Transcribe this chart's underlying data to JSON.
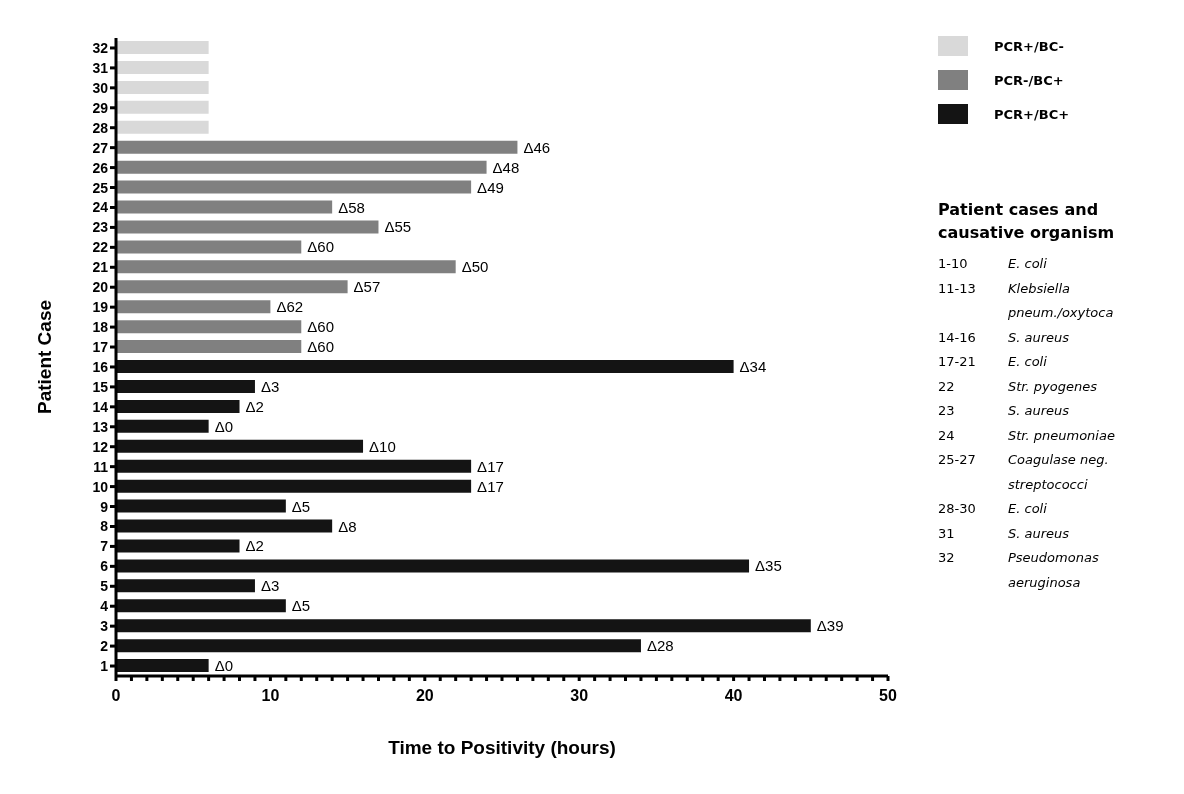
{
  "chart_data": {
    "type": "bar",
    "orientation": "horizontal",
    "stacked": true,
    "xlabel": "Time to Positivity (hours)",
    "ylabel": "Patient Case",
    "categories": [
      "32",
      "31",
      "30",
      "29",
      "28",
      "27",
      "26",
      "25",
      "24",
      "23",
      "22",
      "21",
      "20",
      "19",
      "18",
      "17",
      "16",
      "15",
      "14",
      "13",
      "12",
      "11",
      "10",
      "9",
      "8",
      "7",
      "6",
      "5",
      "4",
      "3",
      "2",
      "1"
    ],
    "series": [
      {
        "name": "PCR+/BC-",
        "color": "#d9d9d9",
        "values": [
          6,
          6,
          6,
          6,
          6,
          null,
          null,
          null,
          null,
          null,
          null,
          null,
          null,
          null,
          null,
          null,
          null,
          null,
          null,
          null,
          null,
          null,
          null,
          null,
          null,
          null,
          null,
          null,
          null,
          null,
          null,
          null
        ]
      },
      {
        "name": "PCR-/BC+",
        "color": "#808080",
        "values": [
          null,
          null,
          null,
          null,
          null,
          26,
          24,
          23,
          14,
          17,
          12,
          22,
          15,
          10,
          12,
          12,
          null,
          null,
          null,
          null,
          null,
          null,
          null,
          null,
          null,
          null,
          null,
          null,
          null,
          null,
          null,
          null
        ],
        "value_labels": [
          null,
          null,
          null,
          null,
          null,
          "Δ46",
          "Δ48",
          "Δ49",
          "Δ58",
          "Δ55",
          "Δ60",
          "Δ50",
          "Δ57",
          "Δ62",
          "Δ60",
          "Δ60",
          null,
          null,
          null,
          null,
          null,
          null,
          null,
          null,
          null,
          null,
          null,
          null,
          null,
          null,
          null,
          null
        ]
      },
      {
        "name": "PCR+/BC+",
        "color": "#141414",
        "values": [
          null,
          null,
          null,
          null,
          null,
          null,
          null,
          null,
          null,
          null,
          null,
          null,
          null,
          null,
          null,
          null,
          40,
          9,
          8,
          6,
          16,
          23,
          23,
          11,
          14,
          8,
          41,
          9,
          11,
          45,
          34,
          6
        ],
        "value_labels": [
          null,
          null,
          null,
          null,
          null,
          null,
          null,
          null,
          null,
          null,
          null,
          null,
          null,
          null,
          null,
          null,
          "Δ34",
          "Δ3",
          "Δ2",
          "Δ0",
          "Δ10",
          "Δ17",
          "Δ17",
          "Δ5",
          "Δ8",
          "Δ2",
          "Δ35",
          "Δ3",
          "Δ5",
          "Δ39",
          "Δ28",
          "Δ0"
        ]
      }
    ],
    "xlim": [
      0,
      50
    ],
    "xticks": [
      0,
      {
        "value": 1,
        "label": null
      },
      {
        "value": 2,
        "label": null
      },
      {
        "value": 3,
        "label": null
      },
      {
        "value": 4,
        "label": null
      },
      {
        "value": 5,
        "label": null
      },
      {
        "value": 6,
        "label": null
      },
      {
        "value": 7,
        "label": null
      },
      {
        "value": 8,
        "label": null
      },
      {
        "value": 9,
        "label": null
      },
      10,
      {
        "value": 11,
        "label": null
      },
      {
        "value": 12,
        "label": null
      },
      {
        "value": 13,
        "label": null
      },
      {
        "value": 14,
        "label": null
      },
      {
        "value": 15,
        "label": null
      },
      {
        "value": 16,
        "label": null
      },
      {
        "value": 17,
        "label": null
      },
      {
        "value": 18,
        "label": null
      },
      {
        "value": 19,
        "label": null
      },
      20,
      {
        "value": 21,
        "label": null
      },
      {
        "value": 22,
        "label": null
      },
      {
        "value": 23,
        "label": null
      },
      {
        "value": 24,
        "label": null
      },
      {
        "value": 25,
        "label": null
      },
      {
        "value": 26,
        "label": null
      },
      {
        "value": 27,
        "label": null
      },
      {
        "value": 28,
        "label": null
      },
      {
        "value": 29,
        "label": null
      },
      30,
      {
        "value": 31,
        "label": null
      },
      {
        "value": 32,
        "label": null
      },
      {
        "value": 33,
        "label": null
      },
      {
        "value": 34,
        "label": null
      },
      {
        "value": 35,
        "label": null
      },
      {
        "value": 36,
        "label": null
      },
      {
        "value": 37,
        "label": null
      },
      {
        "value": 38,
        "label": null
      },
      {
        "value": 39,
        "label": null
      },
      40,
      {
        "value": 41,
        "label": null
      },
      {
        "value": 42,
        "label": null
      },
      {
        "value": 43,
        "label": null
      },
      {
        "value": 44,
        "label": null
      },
      {
        "value": 45,
        "label": null
      },
      {
        "value": 46,
        "label": null
      },
      {
        "value": 47,
        "label": null
      },
      {
        "value": 48,
        "label": null
      },
      {
        "value": 49,
        "label": null
      },
      50
    ],
    "grid": false,
    "legend": "top right",
    "annotations": [
      "Patient cases and causative organism",
      "1-10 E. coli",
      "11-13 Klebsiella pneum./oxytoca",
      "14-16 S. aureus",
      "17-21 E. coli",
      "22 Str. pyogenes",
      "23 S. aureus",
      "24 Str. pneumoniae",
      "25-27 Coagulase neg. streptococci",
      "28-30 E. coli",
      "31 S. aureus",
      "32 Pseudomonas aeruginosa"
    ]
  }
}
